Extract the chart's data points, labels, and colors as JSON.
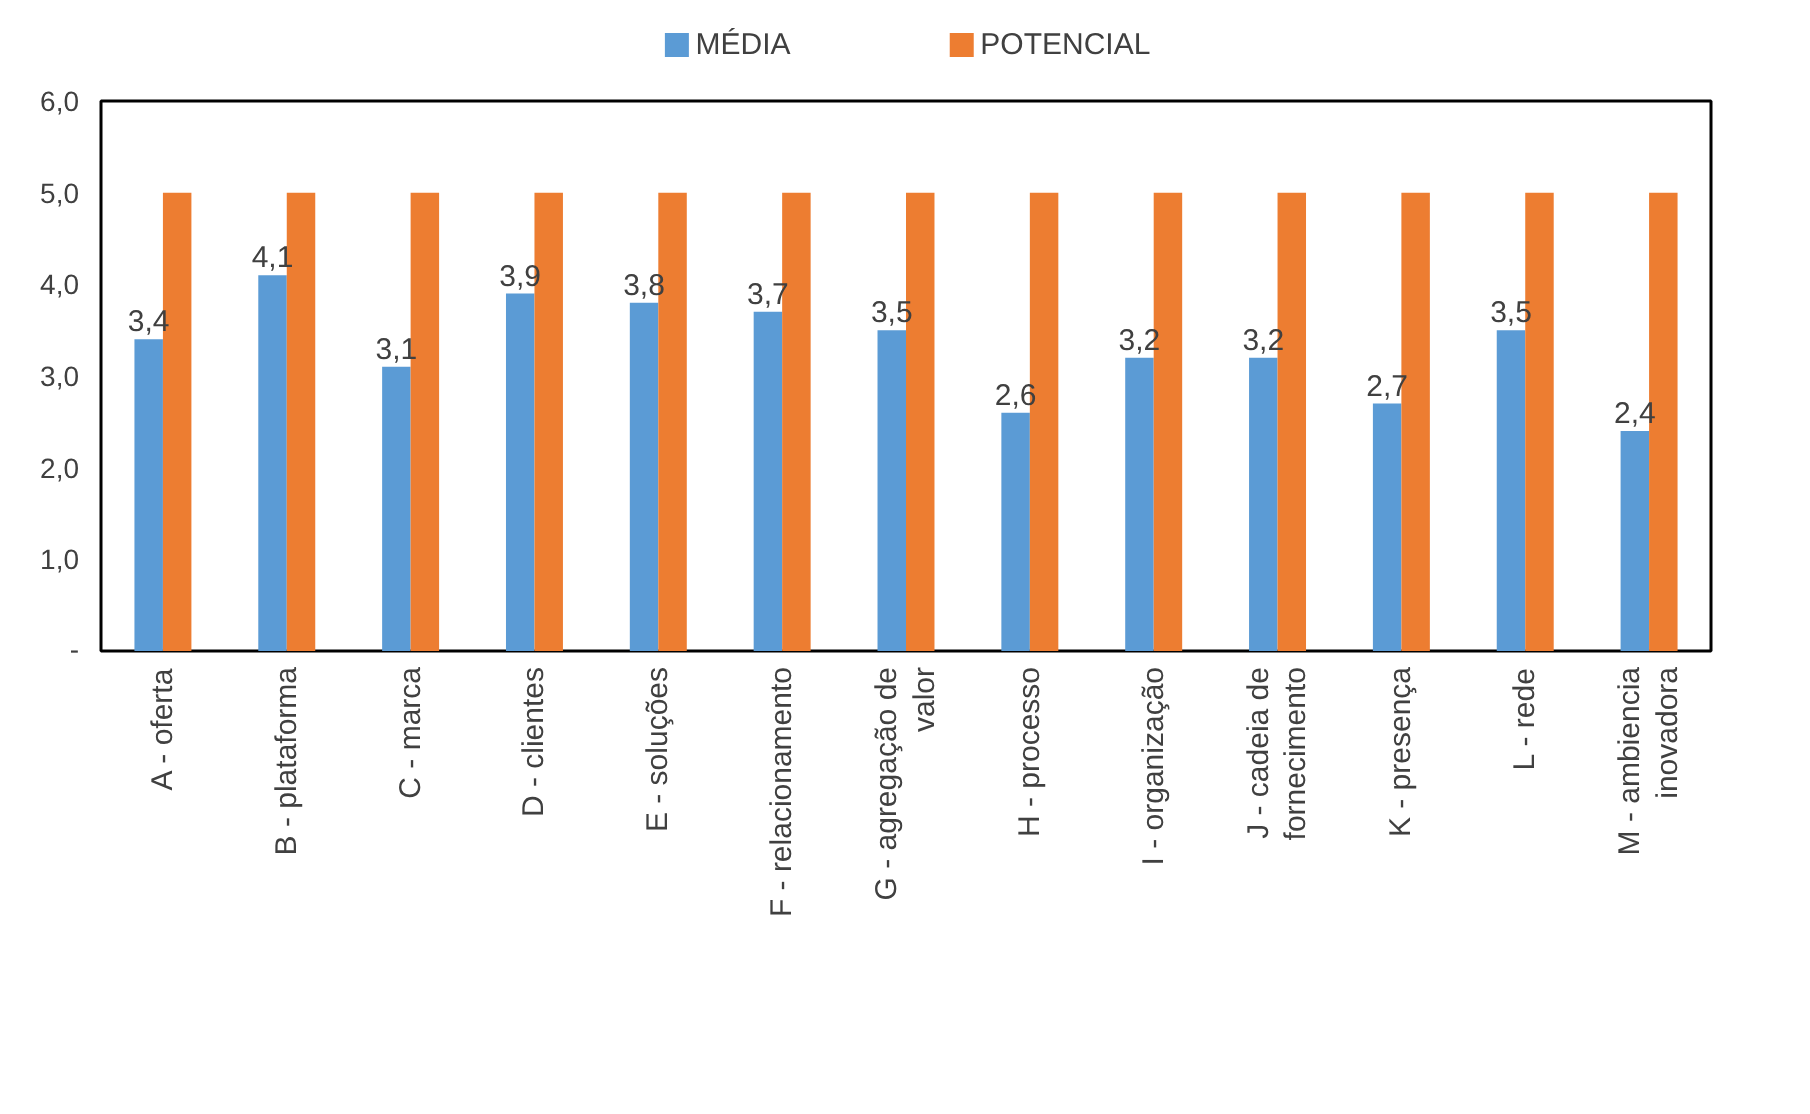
{
  "chart_data": {
    "type": "bar",
    "categories": [
      "A - oferta",
      "B - plataforma",
      "C - marca",
      "D - clientes",
      "E - soluções",
      "F - relacionamento",
      "G - agregação de\nvalor",
      "H - processo",
      "I - organização",
      "J - cadeia de\nfornecimento",
      "K - presença",
      "L - rede",
      "M - ambiencia\ninovadora"
    ],
    "series": [
      {
        "name": "MÉDIA",
        "color": "#5b9bd5",
        "values": [
          3.4,
          4.1,
          3.1,
          3.9,
          3.8,
          3.7,
          3.5,
          2.6,
          3.2,
          3.2,
          2.7,
          3.5,
          2.4
        ],
        "value_labels": [
          "3,4",
          "4,1",
          "3,1",
          "3,9",
          "3,8",
          "3,7",
          "3,5",
          "2,6",
          "3,2",
          "3,2",
          "2,7",
          "3,5",
          "2,4"
        ]
      },
      {
        "name": "POTENCIAL",
        "color": "#ed7d31",
        "values": [
          5,
          5,
          5,
          5,
          5,
          5,
          5,
          5,
          5,
          5,
          5,
          5,
          5
        ]
      }
    ],
    "ylim": [
      0,
      6
    ],
    "yticks": [
      {
        "value": 0,
        "label": "-"
      },
      {
        "value": 1,
        "label": "1,0"
      },
      {
        "value": 2,
        "label": "2,0"
      },
      {
        "value": 3,
        "label": "3,0"
      },
      {
        "value": 4,
        "label": "4,0"
      },
      {
        "value": 5,
        "label": "5,0"
      },
      {
        "value": 6,
        "label": "6,0"
      }
    ],
    "legend": "top",
    "grid": false
  }
}
